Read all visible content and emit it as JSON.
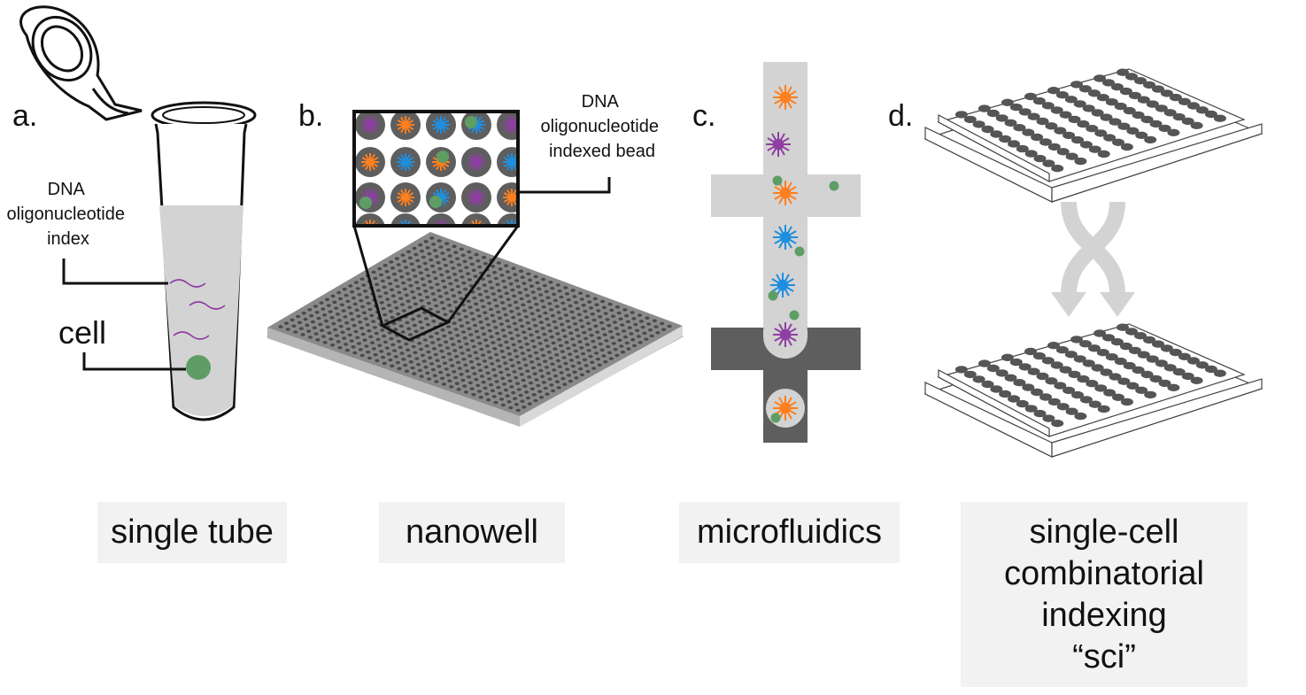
{
  "panels": {
    "a": {
      "letter": "a.",
      "index_label_lines": [
        "DNA",
        "oligonucleotide",
        "index"
      ],
      "cell_label": "cell",
      "caption": "single tube"
    },
    "b": {
      "letter": "b.",
      "bead_label_lines": [
        "DNA",
        "oligonucleotide",
        "indexed bead"
      ],
      "caption": "nanowell"
    },
    "c": {
      "letter": "c.",
      "caption": "microfluidics"
    },
    "d": {
      "letter": "d.",
      "caption_lines": [
        "single-cell",
        "combinatorial",
        "indexing",
        "“sci”"
      ]
    }
  },
  "colors": {
    "orange": "#ff7f1e",
    "purple": "#8f3fa3",
    "blue": "#1e8fe0",
    "green": "#5e9e64",
    "dark_gray": "#5e5e5e",
    "light_gray": "#cfcfcf",
    "caption_bg": "#f2f2f2"
  }
}
